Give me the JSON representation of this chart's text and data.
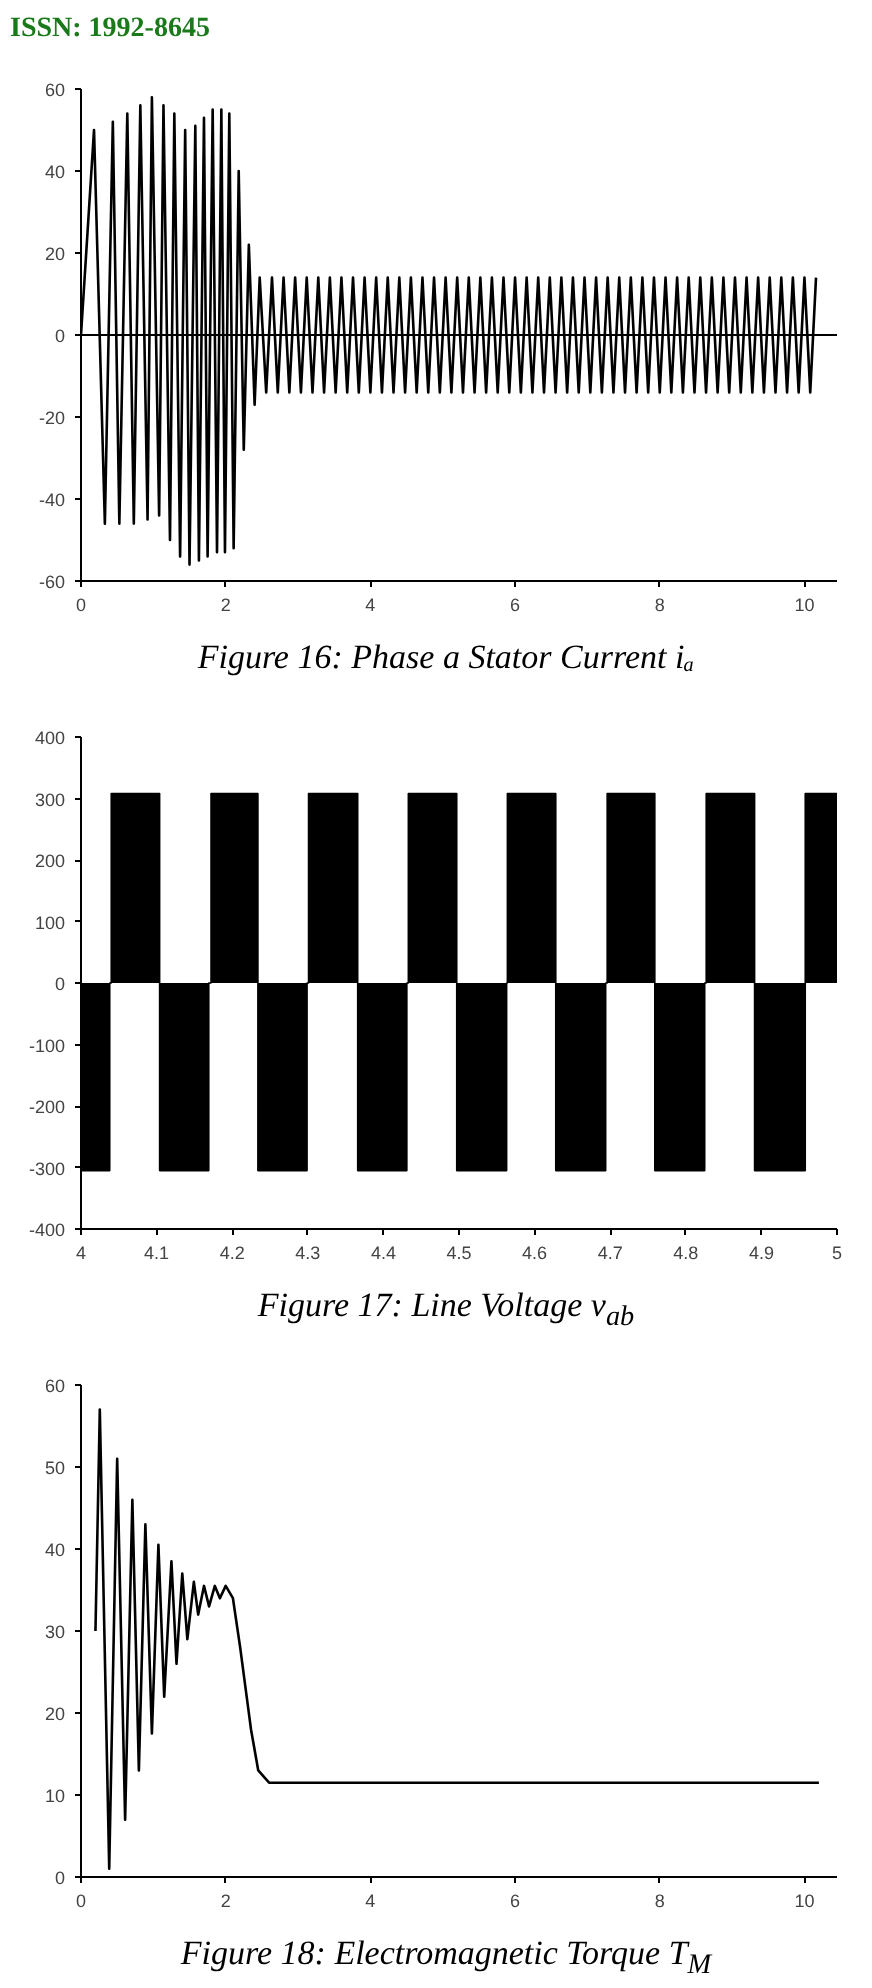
{
  "chart_data": [
    {
      "type": "line",
      "title": "Figure 16: Phase a Stator Current iₐ",
      "annotations": [
        "ISSN: 1992-8645"
      ],
      "color": "#000000",
      "grid": false,
      "xlim": [
        0,
        10.45
      ],
      "ylim": [
        -60,
        60
      ],
      "xticks": [
        0,
        2,
        4,
        6,
        8,
        10
      ],
      "yticks": [
        -60,
        -40,
        -20,
        0,
        20,
        40,
        60
      ],
      "ref_lines": [
        {
          "axis": "y",
          "value": 0,
          "color": "#000000"
        }
      ],
      "x": [
        0,
        0.18,
        0.33,
        0.44,
        0.53,
        0.64,
        0.73,
        0.82,
        0.92,
        0.98,
        1.08,
        1.14,
        1.23,
        1.29,
        1.37,
        1.44,
        1.5,
        1.58,
        1.63,
        1.7,
        1.75,
        1.82,
        1.88,
        1.94,
        1.99,
        2.05,
        2.11,
        2.18,
        2.25,
        2.32,
        2.4,
        2.47,
        2.56,
        2.64,
        2.72,
        2.8,
        2.88,
        2.96,
        3.04,
        3.12,
        3.2,
        3.28,
        3.36,
        3.44,
        3.52,
        3.6,
        3.68,
        3.76,
        3.84,
        3.92,
        4.0,
        4.08,
        4.16,
        4.24,
        4.32,
        4.4,
        4.48,
        4.56,
        4.64,
        4.72,
        4.8,
        4.88,
        4.96,
        5.04,
        5.12,
        5.2,
        5.28,
        5.36,
        5.44,
        5.52,
        5.6,
        5.68,
        5.76,
        5.84,
        5.92,
        6.0,
        6.08,
        6.16,
        6.24,
        6.32,
        6.4,
        6.48,
        6.56,
        6.64,
        6.72,
        6.8,
        6.88,
        6.96,
        7.04,
        7.12,
        7.2,
        7.28,
        7.36,
        7.44,
        7.52,
        7.6,
        7.68,
        7.76,
        7.84,
        7.92,
        8.0,
        8.08,
        8.16,
        8.24,
        8.32,
        8.4,
        8.48,
        8.56,
        8.64,
        8.72,
        8.8,
        8.88,
        8.96,
        9.04,
        9.12,
        9.2,
        9.28,
        9.36,
        9.44,
        9.52,
        9.6,
        9.68,
        9.76,
        9.84,
        9.92,
        10.0,
        10.08,
        10.16
      ],
      "values": [
        0,
        50,
        -46,
        52,
        -46,
        54,
        -46,
        56,
        -45,
        58,
        -44,
        56,
        -50,
        54,
        -54,
        50,
        -56,
        51,
        -55,
        53,
        -54,
        55,
        -53,
        55,
        -53,
        54,
        -52,
        40,
        -28,
        22,
        -17,
        14,
        -14,
        14,
        -14,
        14,
        -14,
        14,
        -14,
        14,
        -14,
        14,
        -14,
        14,
        -14,
        14,
        -14,
        14,
        -14,
        14,
        -14,
        14,
        -14,
        14,
        -14,
        14,
        -14,
        14,
        -14,
        14,
        -14,
        14,
        -14,
        14,
        -14,
        14,
        -14,
        14,
        -14,
        14,
        -14,
        14,
        -14,
        14,
        -14,
        14,
        -14,
        14,
        -14,
        14,
        -14,
        14,
        -14,
        14,
        -14,
        14,
        -14,
        14,
        -14,
        14,
        -14,
        14,
        -14,
        14,
        -14,
        14,
        -14,
        14,
        -14,
        14,
        -14,
        14,
        -14,
        14,
        -14,
        14,
        -14,
        14,
        -14,
        14,
        -14,
        14,
        -14,
        14,
        -14,
        14,
        -14,
        14,
        -14,
        14,
        -14,
        14,
        -14,
        14,
        -14,
        14,
        -14,
        14
      ]
    },
    {
      "type": "area",
      "title": "Figure 17: Line Voltage v$_{ab}$",
      "color": "#000000",
      "grid": false,
      "xlim": [
        4,
        5
      ],
      "ylim": [
        -400,
        400
      ],
      "xticks": [
        4,
        4.1,
        4.2,
        4.3,
        4.4,
        4.5,
        4.6,
        4.7,
        4.8,
        4.9,
        5
      ],
      "yticks": [
        -400,
        -300,
        -200,
        -100,
        0,
        100,
        200,
        300,
        400
      ],
      "x": [
        4,
        4.038,
        4.038,
        4.04,
        4.04,
        4.104,
        4.104,
        4.169,
        4.169,
        4.172,
        4.172,
        4.234,
        4.234,
        4.299,
        4.299,
        4.301,
        4.301,
        4.366,
        4.366,
        4.431,
        4.431,
        4.433,
        4.433,
        4.497,
        4.497,
        4.563,
        4.563,
        4.564,
        4.564,
        4.628,
        4.628,
        4.694,
        4.694,
        4.696,
        4.696,
        4.759,
        4.759,
        4.825,
        4.825,
        4.827,
        4.827,
        4.891,
        4.891,
        4.958,
        4.958,
        5
      ],
      "values": [
        -305,
        -305,
        0,
        0,
        308,
        308,
        -305,
        -305,
        0,
        0,
        308,
        308,
        -305,
        -305,
        0,
        0,
        308,
        308,
        -305,
        -305,
        0,
        0,
        308,
        308,
        -305,
        -305,
        0,
        0,
        308,
        308,
        -305,
        -305,
        0,
        0,
        308,
        308,
        -305,
        -305,
        0,
        0,
        308,
        308,
        -305,
        -305,
        308,
        308
      ]
    },
    {
      "type": "line",
      "title": "Figure 18: Electromagnetic Torque T$_{M}$",
      "color": "#000000",
      "grid": false,
      "xlim": [
        0,
        10.45
      ],
      "ylim": [
        0,
        60
      ],
      "xticks": [
        0,
        2,
        4,
        6,
        8,
        10
      ],
      "yticks": [
        0,
        10,
        20,
        30,
        40,
        50,
        60
      ],
      "x": [
        0.2,
        0.26,
        0.39,
        0.5,
        0.61,
        0.71,
        0.8,
        0.89,
        0.98,
        1.07,
        1.15,
        1.25,
        1.32,
        1.4,
        1.47,
        1.56,
        1.62,
        1.7,
        1.77,
        1.85,
        1.92,
        2.0,
        2.1,
        2.2,
        2.35,
        2.45,
        2.6,
        3,
        4,
        5,
        6,
        7,
        8,
        9,
        10.2
      ],
      "values": [
        30,
        57,
        1,
        51,
        7,
        46,
        13,
        43,
        17.5,
        40.5,
        22,
        38.5,
        26,
        37,
        29,
        36,
        32,
        35.5,
        33,
        35.5,
        34,
        35.5,
        34,
        28,
        18,
        13,
        11.5,
        11.5,
        11.5,
        11.5,
        11.5,
        11.5,
        11.5,
        11.5,
        11.5
      ]
    }
  ]
}
